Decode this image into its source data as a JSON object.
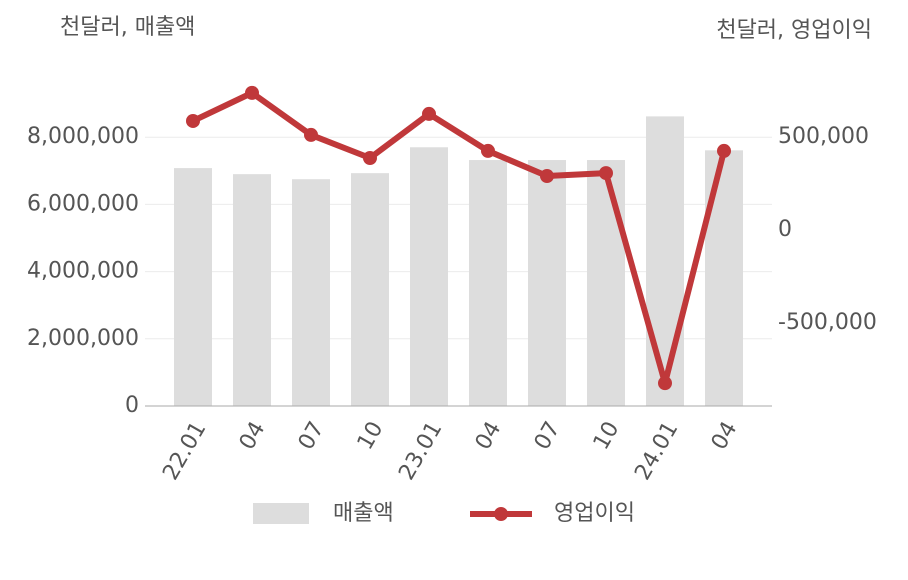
{
  "chart_data": {
    "type": "bar-line",
    "y_label": "천달러, 매출액",
    "y2_label": "천달러, 영업이익",
    "categories": [
      "22.01",
      "04",
      "07",
      "10",
      "23.01",
      "04",
      "07",
      "10",
      "24.01",
      "04"
    ],
    "series": [
      {
        "name": "매출액",
        "type": "bar",
        "color": "#dddddd",
        "values": [
          7080000,
          6900000,
          6750000,
          6930000,
          7700000,
          7320000,
          7320000,
          7320000,
          8620000,
          7610000
        ]
      },
      {
        "name": "영업이익",
        "type": "line",
        "axis": "y2",
        "color": "#c0383a",
        "values": [
          586000,
          737000,
          511000,
          387000,
          624000,
          425000,
          290000,
          306000,
          -823000,
          425000
        ]
      }
    ],
    "ylim": [
      0,
      10000000
    ],
    "yticks": [
      0,
      {
        "value": 2000000,
        "label": "2,000,000"
      },
      {
        "value": 4000000,
        "label": "4,000,000"
      },
      {
        "value": 6000000,
        "label": "6,000,000"
      },
      {
        "value": 8000000,
        "label": "8,000,000"
      }
    ],
    "y2lim": [
      -946000,
      860000
    ],
    "y2ticks": [
      {
        "value": -500000,
        "label": "-500,000"
      },
      0,
      {
        "value": 500000,
        "label": "500,000"
      }
    ],
    "grid": true,
    "legend": "bottom"
  }
}
